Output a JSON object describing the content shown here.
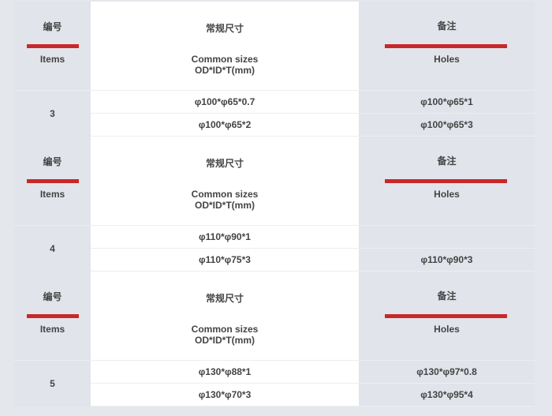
{
  "header": {
    "items_cn": "编号",
    "items_en": "Items",
    "sizes_cn": "常规尺寸",
    "sizes_en": "Common sizes",
    "sizes_unit": "OD*ID*T(mm)",
    "holes_cn": "备注",
    "holes_en": "Holes"
  },
  "accent_color": "#c8282a",
  "groups": [
    {
      "item": "3",
      "sizes": [
        "φ100*φ65*0.7",
        "φ100*φ65*2"
      ],
      "holes": [
        "φ100*φ65*1",
        "φ100*φ65*3"
      ]
    },
    {
      "item": "4",
      "sizes": [
        "φ110*φ90*1",
        "φ110*φ75*3"
      ],
      "holes": [
        "",
        "φ110*φ90*3"
      ]
    },
    {
      "item": "5",
      "sizes": [
        "φ130*φ88*1",
        "φ130*φ70*3"
      ],
      "holes": [
        "φ130*φ97*0.8",
        "φ130*φ95*4"
      ]
    }
  ]
}
